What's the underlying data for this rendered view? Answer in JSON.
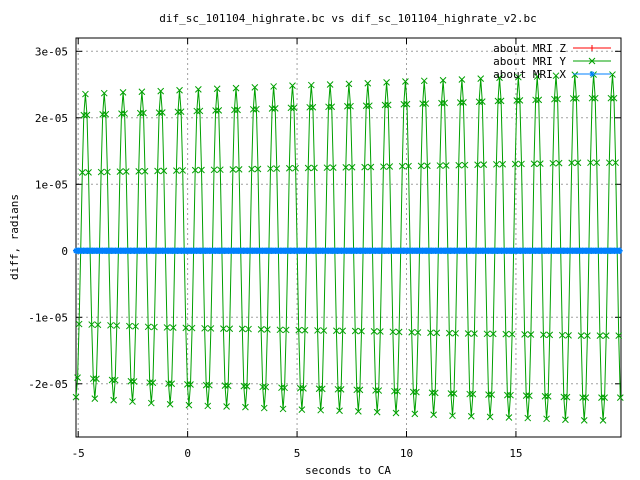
{
  "chart_data": {
    "type": "line",
    "title": "dif_sc_101104_highrate.bc vs dif_sc_101104_highrate_v2.bc",
    "xlabel": "seconds to CA",
    "ylabel": "diff, radians",
    "xlim": [
      -5.1,
      19.8
    ],
    "ylim": [
      -2.8e-05,
      3.2e-05
    ],
    "x_ticks": [
      {
        "value": -5,
        "label": "-5"
      },
      {
        "value": 0,
        "label": "0"
      },
      {
        "value": 5,
        "label": "5"
      },
      {
        "value": 10,
        "label": "10"
      },
      {
        "value": 15,
        "label": "15"
      }
    ],
    "y_ticks": [
      {
        "value": 3e-05,
        "label": "3e-05"
      },
      {
        "value": 2e-05,
        "label": "2e-05"
      },
      {
        "value": 1e-05,
        "label": "1e-05"
      },
      {
        "value": 0,
        "label": "0"
      },
      {
        "value": -1e-05,
        "label": "-1e-05"
      },
      {
        "value": -2e-05,
        "label": "-2e-05"
      }
    ],
    "grid": true,
    "legend_position": "top-right",
    "series": [
      {
        "name": "about MRI Z",
        "color": "#ff0000",
        "marker": "plus",
        "description_values": "approximately 0 throughout",
        "x": [
          -5.1,
          19.8
        ],
        "values": [
          0,
          0
        ]
      },
      {
        "name": "about MRI Y",
        "color": "#00a000",
        "marker": "x",
        "oscillation_period_s": 0.86,
        "positive_peaks_y": [
          2.35e-05,
          2.38e-05,
          2.4e-05,
          2.43e-05,
          2.45e-05,
          2.48e-05,
          2.5e-05,
          2.52e-05,
          2.55e-05,
          2.57e-05,
          2.6e-05,
          2.62e-05,
          2.65e-05,
          2.65e-05
        ],
        "negative_peaks_y": [
          -2.2e-05,
          -2.25e-05,
          -2.3e-05,
          -2.33e-05,
          -2.35e-05,
          -2.38e-05,
          -2.4e-05,
          -2.42e-05,
          -2.45e-05,
          -2.48e-05,
          -2.5e-05,
          -2.52e-05,
          -2.55e-05,
          -2.55e-05
        ],
        "x_start": -5.1,
        "x_end": 19.8
      },
      {
        "name": "about MRI X",
        "color": "#0080ff",
        "marker": "star",
        "values": [
          0,
          0
        ],
        "x": [
          -5.1,
          19.8
        ]
      }
    ]
  }
}
